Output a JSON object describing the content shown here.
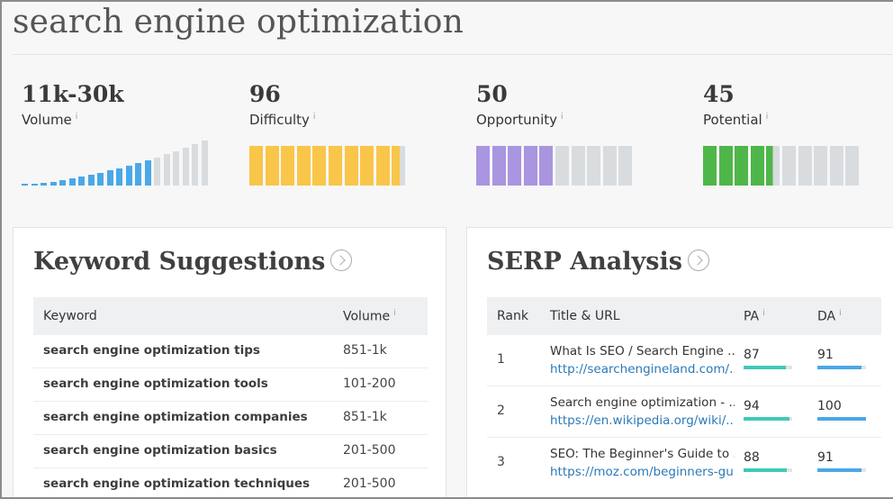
{
  "page_title": "search engine optimization",
  "metrics": [
    {
      "value": "11k-30k",
      "label": "Volume",
      "info": "i"
    },
    {
      "value": "96",
      "label": "Difficulty",
      "info": "i",
      "fill_percent": 96,
      "color": "#f9c64a"
    },
    {
      "value": "50",
      "label": "Opportunity",
      "info": "i",
      "fill_percent": 50,
      "color": "#a995e0"
    },
    {
      "value": "45",
      "label": "Potential",
      "info": "i",
      "fill_percent": 45,
      "color": "#4fb64a"
    }
  ],
  "colors": {
    "volume_active": "#4aa8e8",
    "bar_inactive": "#d9dcdf",
    "pa_bar": "#40c9b8",
    "da_bar": "#4aa8e8",
    "link": "#2b79b8"
  },
  "keyword_suggestions": {
    "title": "Keyword Suggestions",
    "col_keyword": "Keyword",
    "col_volume": "Volume",
    "col_volume_info": "i",
    "rows": [
      {
        "keyword": "search engine optimization tips",
        "volume": "851-1k"
      },
      {
        "keyword": "search engine optimization tools",
        "volume": "101-200"
      },
      {
        "keyword": "search engine optimization companies",
        "volume": "851-1k"
      },
      {
        "keyword": "search engine optimization basics",
        "volume": "201-500"
      },
      {
        "keyword": "search engine optimization techniques",
        "volume": "201-500"
      }
    ]
  },
  "serp_analysis": {
    "title": "SERP Analysis",
    "col_rank": "Rank",
    "col_title": "Title & URL",
    "col_pa": "PA",
    "col_da": "DA",
    "col_info": "i",
    "rows": [
      {
        "rank": "1",
        "title": "What Is SEO / Search Engine ...",
        "url": "http://searchengineland.com/...",
        "pa": "87",
        "pa_value": 87,
        "da": "91",
        "da_value": 91
      },
      {
        "rank": "2",
        "title": "Search engine optimization - ...",
        "url": "https://en.wikipedia.org/wiki/...",
        "pa": "94",
        "pa_value": 94,
        "da": "100",
        "da_value": 100
      },
      {
        "rank": "3",
        "title": "SEO: The Beginner's Guide to ...",
        "url": "https://moz.com/beginners-gu...",
        "pa": "88",
        "pa_value": 88,
        "da": "91",
        "da_value": 91
      }
    ]
  }
}
